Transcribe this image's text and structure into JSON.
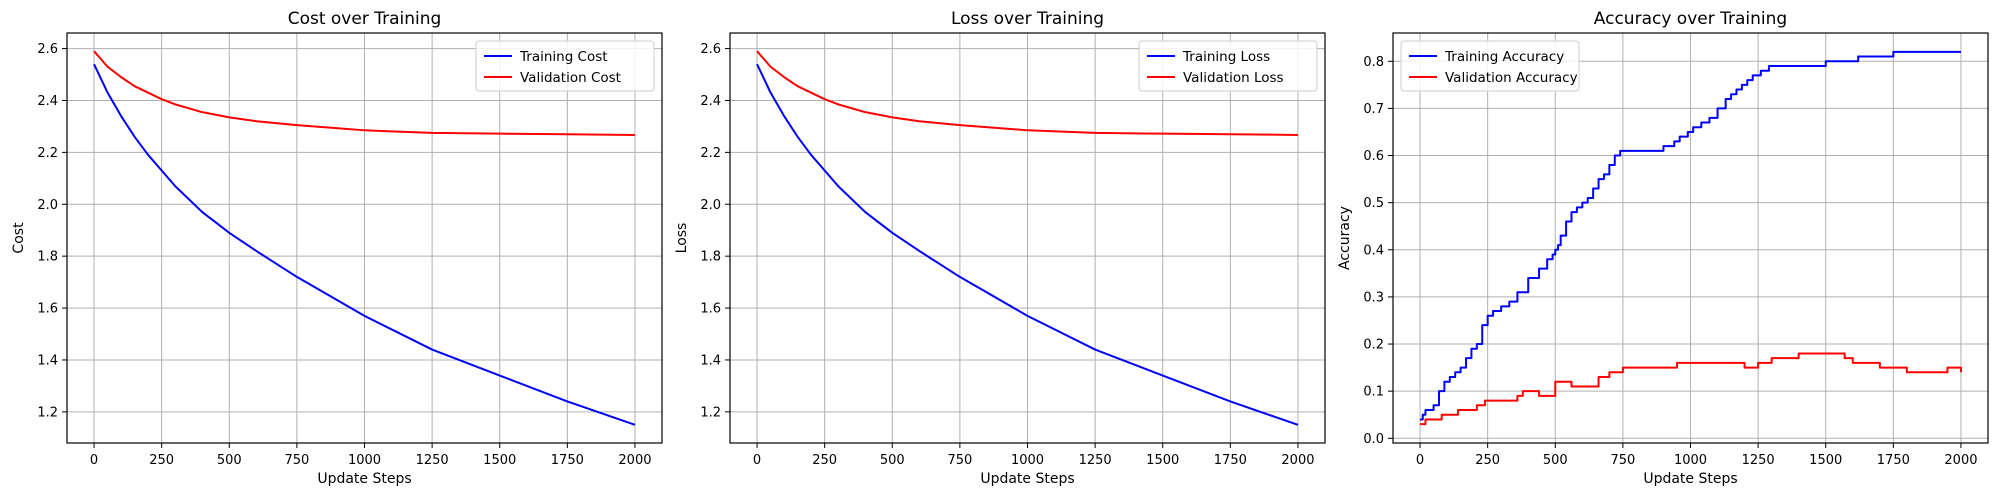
{
  "chart_data": [
    {
      "type": "line",
      "title": "Cost over Training",
      "xlabel": "Update Steps",
      "ylabel": "Cost",
      "xlim": [
        -100,
        2100
      ],
      "ylim": [
        1.08,
        2.66
      ],
      "xticks": [
        0,
        250,
        500,
        750,
        1000,
        1250,
        1500,
        1750,
        2000
      ],
      "yticks": [
        1.2,
        1.4,
        1.6,
        1.8,
        2.0,
        2.2,
        2.4,
        2.6
      ],
      "ytick_decimals": 1,
      "grid": true,
      "legend": "top-right",
      "series": [
        {
          "name": "Training Cost",
          "color": "#0000ff",
          "x": [
            0,
            50,
            100,
            150,
            200,
            250,
            300,
            400,
            500,
            600,
            750,
            1000,
            1250,
            1500,
            1750,
            2000
          ],
          "y": [
            2.54,
            2.43,
            2.34,
            2.26,
            2.19,
            2.13,
            2.07,
            1.97,
            1.89,
            1.82,
            1.72,
            1.57,
            1.44,
            1.34,
            1.24,
            1.15
          ]
        },
        {
          "name": "Validation Cost",
          "color": "#ff0000",
          "x": [
            0,
            50,
            100,
            150,
            200,
            250,
            300,
            400,
            500,
            600,
            750,
            1000,
            1250,
            1500,
            1750,
            2000
          ],
          "y": [
            2.59,
            2.53,
            2.49,
            2.455,
            2.43,
            2.405,
            2.385,
            2.355,
            2.335,
            2.32,
            2.305,
            2.285,
            2.275,
            2.272,
            2.27,
            2.267
          ]
        }
      ]
    },
    {
      "type": "line",
      "title": "Loss over Training",
      "xlabel": "Update Steps",
      "ylabel": "Loss",
      "xlim": [
        -100,
        2100
      ],
      "ylim": [
        1.08,
        2.66
      ],
      "xticks": [
        0,
        250,
        500,
        750,
        1000,
        1250,
        1500,
        1750,
        2000
      ],
      "yticks": [
        1.2,
        1.4,
        1.6,
        1.8,
        2.0,
        2.2,
        2.4,
        2.6
      ],
      "ytick_decimals": 1,
      "grid": true,
      "legend": "top-right",
      "series": [
        {
          "name": "Training Loss",
          "color": "#0000ff",
          "x": [
            0,
            50,
            100,
            150,
            200,
            250,
            300,
            400,
            500,
            600,
            750,
            1000,
            1250,
            1500,
            1750,
            2000
          ],
          "y": [
            2.54,
            2.43,
            2.34,
            2.26,
            2.19,
            2.13,
            2.07,
            1.97,
            1.89,
            1.82,
            1.72,
            1.57,
            1.44,
            1.34,
            1.24,
            1.15
          ]
        },
        {
          "name": "Validation Loss",
          "color": "#ff0000",
          "x": [
            0,
            50,
            100,
            150,
            200,
            250,
            300,
            400,
            500,
            600,
            750,
            1000,
            1250,
            1500,
            1750,
            2000
          ],
          "y": [
            2.59,
            2.53,
            2.49,
            2.455,
            2.43,
            2.405,
            2.385,
            2.355,
            2.335,
            2.32,
            2.305,
            2.285,
            2.275,
            2.272,
            2.27,
            2.267
          ]
        }
      ]
    },
    {
      "type": "line",
      "title": "Accuracy over Training",
      "xlabel": "Update Steps",
      "ylabel": "Accuracy",
      "xlim": [
        -100,
        2100
      ],
      "ylim": [
        -0.01,
        0.86
      ],
      "xticks": [
        0,
        250,
        500,
        750,
        1000,
        1250,
        1500,
        1750,
        2000
      ],
      "yticks": [
        0.0,
        0.1,
        0.2,
        0.3,
        0.4,
        0.5,
        0.6,
        0.7,
        0.8
      ],
      "ytick_decimals": 1,
      "grid": true,
      "legend": "top-left",
      "series": [
        {
          "name": "Training Accuracy",
          "color": "#0000ff",
          "step": true,
          "x": [
            0,
            10,
            20,
            50,
            70,
            90,
            110,
            130,
            150,
            170,
            190,
            210,
            230,
            250,
            270,
            300,
            330,
            360,
            400,
            440,
            470,
            490,
            500,
            510,
            520,
            540,
            560,
            580,
            600,
            620,
            640,
            660,
            680,
            700,
            720,
            740,
            760,
            800,
            850,
            900,
            940,
            960,
            990,
            1010,
            1040,
            1070,
            1100,
            1130,
            1150,
            1170,
            1190,
            1210,
            1230,
            1260,
            1290,
            1330,
            1400,
            1500,
            1620,
            1650,
            1750,
            2000
          ],
          "y": [
            0.04,
            0.05,
            0.06,
            0.07,
            0.1,
            0.12,
            0.13,
            0.14,
            0.15,
            0.17,
            0.19,
            0.2,
            0.24,
            0.26,
            0.27,
            0.28,
            0.29,
            0.31,
            0.34,
            0.36,
            0.38,
            0.39,
            0.4,
            0.41,
            0.43,
            0.46,
            0.48,
            0.49,
            0.5,
            0.51,
            0.53,
            0.55,
            0.56,
            0.58,
            0.6,
            0.61,
            0.61,
            0.61,
            0.61,
            0.62,
            0.63,
            0.64,
            0.65,
            0.66,
            0.67,
            0.68,
            0.7,
            0.72,
            0.73,
            0.74,
            0.75,
            0.76,
            0.77,
            0.78,
            0.79,
            0.79,
            0.79,
            0.8,
            0.81,
            0.81,
            0.82,
            0.82
          ]
        },
        {
          "name": "Validation Accuracy",
          "color": "#ff0000",
          "step": true,
          "x": [
            0,
            20,
            50,
            80,
            100,
            140,
            170,
            210,
            240,
            280,
            330,
            360,
            380,
            410,
            440,
            490,
            500,
            520,
            560,
            620,
            660,
            700,
            750,
            800,
            850,
            900,
            950,
            1000,
            1050,
            1100,
            1150,
            1200,
            1250,
            1300,
            1350,
            1400,
            1500,
            1570,
            1600,
            1650,
            1700,
            1750,
            1800,
            1900,
            1950,
            2000
          ],
          "y": [
            0.03,
            0.04,
            0.04,
            0.05,
            0.05,
            0.06,
            0.06,
            0.07,
            0.08,
            0.08,
            0.08,
            0.09,
            0.1,
            0.1,
            0.09,
            0.09,
            0.12,
            0.12,
            0.11,
            0.11,
            0.13,
            0.14,
            0.15,
            0.15,
            0.15,
            0.15,
            0.16,
            0.16,
            0.16,
            0.16,
            0.16,
            0.15,
            0.16,
            0.17,
            0.17,
            0.18,
            0.18,
            0.17,
            0.16,
            0.16,
            0.15,
            0.15,
            0.14,
            0.14,
            0.15,
            0.14
          ]
        }
      ]
    }
  ]
}
